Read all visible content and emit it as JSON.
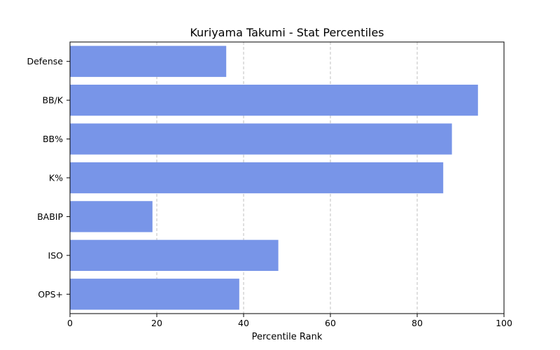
{
  "chart_data": {
    "type": "bar",
    "orientation": "horizontal",
    "title": "Kuriyama Takumi - Stat Percentiles",
    "xlabel": "Percentile Rank",
    "ylabel": "",
    "xlim": [
      0,
      100
    ],
    "x_ticks": [
      "0",
      "20",
      "40",
      "60",
      "80",
      "100"
    ],
    "categories": [
      "Defense",
      "BB/K",
      "BB%",
      "K%",
      "BABIP",
      "ISO",
      "OPS+"
    ],
    "values": [
      36,
      94,
      88,
      86,
      19,
      48,
      39
    ],
    "bar_color": "#7895e8",
    "grid": "x-axis dashed",
    "legend": "none"
  }
}
